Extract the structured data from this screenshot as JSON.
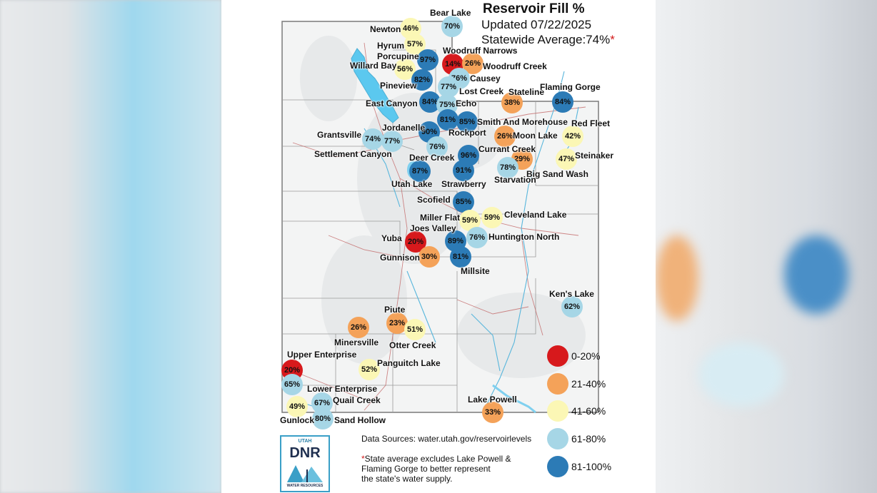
{
  "header": {
    "title": "Reservoir Fill %",
    "updated": "Updated 07/22/2025",
    "average_text": "Statewide Average:74%",
    "average_marker": "*"
  },
  "colors": {
    "range_0_20": "#d7191c",
    "range_21_40": "#f4a259",
    "range_41_60": "#fbf7b5",
    "range_61_80": "#a6d6e6",
    "range_81_100": "#2c7bb6"
  },
  "legend": [
    {
      "label": "0-20%",
      "color": "#d7191c"
    },
    {
      "label": "21-40%",
      "color": "#f4a259"
    },
    {
      "label": "41-60%",
      "color": "#fbf7b5"
    },
    {
      "label": "61-80%",
      "color": "#a6d6e6"
    },
    {
      "label": "81-100%",
      "color": "#2c7bb6"
    }
  ],
  "reservoirs": [
    {
      "name": "Bear Lake",
      "value": "70%"
    },
    {
      "name": "Newton",
      "value": "46%"
    },
    {
      "name": "Hyrum",
      "value": "57%"
    },
    {
      "name": "Porcupine",
      "value": "97%"
    },
    {
      "name": "Woodruff Narrows",
      "value": "14%"
    },
    {
      "name": "Woodruff Creek",
      "value": "26%"
    },
    {
      "name": "Willard Bay",
      "value": "56%"
    },
    {
      "name": "Causey",
      "value": "76%"
    },
    {
      "name": "Pineview",
      "value": "82%"
    },
    {
      "name": "Lost Creek",
      "value": "77%"
    },
    {
      "name": "Stateline",
      "value": "38%"
    },
    {
      "name": "Flaming Gorge",
      "value": "84%"
    },
    {
      "name": "East Canyon",
      "value": "84%"
    },
    {
      "name": "Echo",
      "value": "75%"
    },
    {
      "name": "Smith And Morehouse",
      "value": "85%"
    },
    {
      "name": "Rockport",
      "value": "81%"
    },
    {
      "name": "Red Fleet",
      "value": "42%"
    },
    {
      "name": "Moon Lake",
      "value": "26%"
    },
    {
      "name": "Jordanelle",
      "value": "90%"
    },
    {
      "name": "Grantsville",
      "value": "74%"
    },
    {
      "name": "Settlement Canyon",
      "value": "77%"
    },
    {
      "name": "Deer Creek",
      "value": "76%"
    },
    {
      "name": "Currant Creek",
      "value": "96%"
    },
    {
      "name": "Steinaker",
      "value": "47%"
    },
    {
      "name": "Big Sand Wash",
      "value": "29%"
    },
    {
      "name": "Utah Lake",
      "value": "87%"
    },
    {
      "name": "Strawberry",
      "value": "91%"
    },
    {
      "name": "Starvation",
      "value": "78%"
    },
    {
      "name": "Scofield",
      "value": "85%"
    },
    {
      "name": "Miller Flat",
      "value": "59%"
    },
    {
      "name": "Cleveland Lake",
      "value": "59%"
    },
    {
      "name": "Joes Valley",
      "value": "89%"
    },
    {
      "name": "Huntington North",
      "value": "76%"
    },
    {
      "name": "Yuba",
      "value": "20%"
    },
    {
      "name": "Gunnison",
      "value": "30%"
    },
    {
      "name": "Millsite",
      "value": "81%"
    },
    {
      "name": "Ken's Lake",
      "value": "62%"
    },
    {
      "name": "Piute",
      "value": "23%"
    },
    {
      "name": "Minersville",
      "value": "26%"
    },
    {
      "name": "Otter Creek",
      "value": "51%"
    },
    {
      "name": "Upper Enterprise",
      "value": "20%"
    },
    {
      "name": "Panguitch Lake",
      "value": "52%"
    },
    {
      "name": "Lower Enterprise",
      "value": "65%"
    },
    {
      "name": "Quail Creek",
      "value": "67%"
    },
    {
      "name": "Gunlock",
      "value": "49%"
    },
    {
      "name": "Sand Hollow",
      "value": "80%"
    },
    {
      "name": "Lake Powell",
      "value": "33%"
    }
  ],
  "footer": {
    "sources": "Data Sources: water.utah.gov/reservoirlevels",
    "note_marker": "*",
    "note_line1": "State average excludes Lake Powell &",
    "note_line2": "Flaming Gorge to better represent",
    "note_line3": "the state's water supply."
  },
  "logo": {
    "top_text": "UTAH",
    "main_text": "DNR",
    "bottom_text": "WATER RESOURCES"
  }
}
